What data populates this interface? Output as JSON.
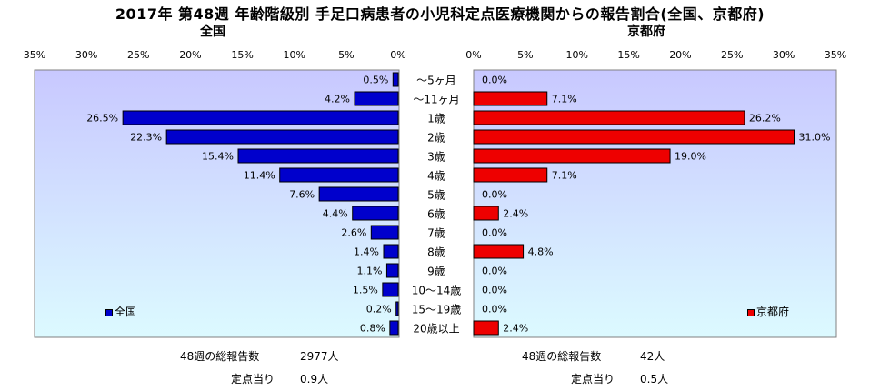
{
  "title": "2017年 第48週 年齢階級別 手足口病患者の小児科定点医療機関からの報告割合(全国、京都府)",
  "chart_data": [
    {
      "type": "bar",
      "orientation": "horizontal",
      "panel_title": "全国",
      "legend": "全国",
      "axis_direction": "reversed",
      "xlim": [
        0,
        35
      ],
      "ticks": [
        "35%",
        "30%",
        "25%",
        "20%",
        "15%",
        "10%",
        "5%",
        "0%"
      ],
      "color": "#0000cc",
      "categories": [
        "～5ヶ月",
        "～11ヶ月",
        "1歳",
        "2歳",
        "3歳",
        "4歳",
        "5歳",
        "6歳",
        "7歳",
        "8歳",
        "9歳",
        "10～14歳",
        "15～19歳",
        "20歳以上"
      ],
      "values": [
        0.5,
        4.2,
        26.5,
        22.3,
        15.4,
        11.4,
        7.6,
        4.4,
        2.6,
        1.4,
        1.1,
        1.5,
        0.2,
        0.8
      ],
      "labels": [
        "0.5%",
        "4.2%",
        "26.5%",
        "22.3%",
        "15.4%",
        "11.4%",
        "7.6%",
        "4.4%",
        "2.6%",
        "1.4%",
        "1.1%",
        "1.5%",
        "0.2%",
        "0.8%"
      ]
    },
    {
      "type": "bar",
      "orientation": "horizontal",
      "panel_title": "京都府",
      "legend": "京都府",
      "xlim": [
        0,
        35
      ],
      "ticks": [
        "0%",
        "5%",
        "10%",
        "15%",
        "20%",
        "25%",
        "30%",
        "35%"
      ],
      "color": "#ee0000",
      "categories": [
        "～5ヶ月",
        "～11ヶ月",
        "1歳",
        "2歳",
        "3歳",
        "4歳",
        "5歳",
        "6歳",
        "7歳",
        "8歳",
        "9歳",
        "10～14歳",
        "15～19歳",
        "20歳以上"
      ],
      "values": [
        0.0,
        7.1,
        26.2,
        31.0,
        19.0,
        7.1,
        0.0,
        2.4,
        0.0,
        4.8,
        0.0,
        0.0,
        0.0,
        2.4
      ],
      "labels": [
        "0.0%",
        "7.1%",
        "26.2%",
        "31.0%",
        "19.0%",
        "7.1%",
        "0.0%",
        "2.4%",
        "0.0%",
        "4.8%",
        "0.0%",
        "0.0%",
        "0.0%",
        "2.4%"
      ]
    }
  ],
  "footer": {
    "national": {
      "total_label": "48週の総報告数",
      "total_value": "2977人",
      "per_label": "定点当り",
      "per_value": "0.9人"
    },
    "kyoto": {
      "total_label": "48週の総報告数",
      "total_value": "42人",
      "per_label": "定点当り",
      "per_value": "0.5人"
    }
  },
  "colors": {
    "plot_bg_top": "#c8c8ff",
    "plot_bg_bottom": "#dcfaff"
  }
}
